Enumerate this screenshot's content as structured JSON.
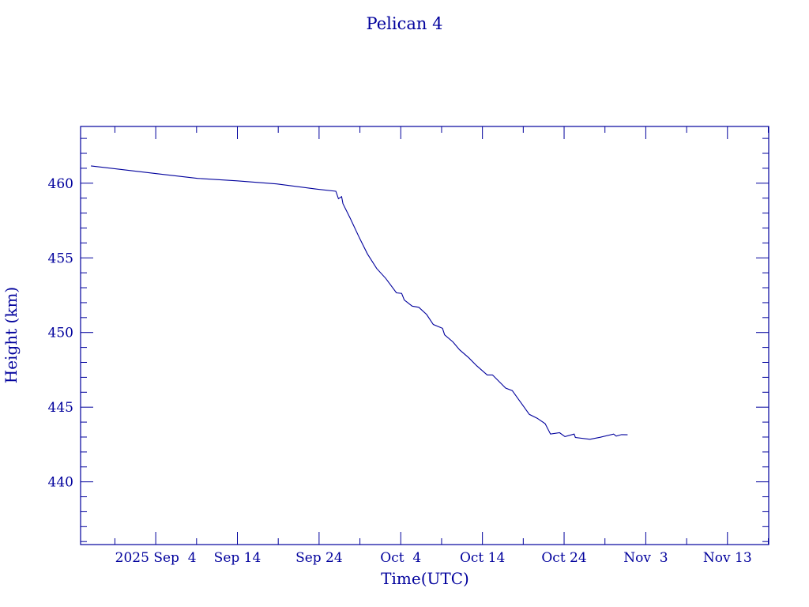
{
  "chart_data": {
    "type": "line",
    "title": "Pelican 4",
    "xlabel": "Time(UTC)",
    "ylabel": "Height (km)",
    "x_unit": "days since 2025-09-04 00:00 UTC",
    "xlim": [
      -9.2,
      75.05
    ],
    "ylim": [
      435.8,
      463.8
    ],
    "x_ticks": [
      {
        "value": 0,
        "label": "2025 Sep  4"
      },
      {
        "value": 10,
        "label": "Sep 14"
      },
      {
        "value": 20,
        "label": "Sep 24"
      },
      {
        "value": 30,
        "label": "Oct  4"
      },
      {
        "value": 40,
        "label": "Oct 14"
      },
      {
        "value": 50,
        "label": "Oct 24"
      },
      {
        "value": 60,
        "label": "Nov  3"
      },
      {
        "value": 70,
        "label": "Nov 13"
      }
    ],
    "x_minor_step": 5,
    "y_ticks": [
      {
        "value": 440,
        "label": "440"
      },
      {
        "value": 445,
        "label": "445"
      },
      {
        "value": 450,
        "label": "450"
      },
      {
        "value": 455,
        "label": "455"
      },
      {
        "value": 460,
        "label": "460"
      }
    ],
    "y_minor_step": 1,
    "grid": false,
    "color": "#00009c",
    "series": [
      {
        "name": "Pelican 4",
        "x": [
          -7.93,
          0.29,
          5.13,
          9.96,
          14.8,
          19.63,
          22.05,
          22.37,
          22.76,
          22.92,
          23.82,
          24.95,
          25.92,
          27.05,
          28.17,
          29.47,
          30.11,
          30.43,
          31.4,
          32.21,
          33.17,
          33.98,
          35.11,
          35.37,
          36.39,
          37.2,
          38.33,
          39.29,
          40.59,
          41.23,
          42.2,
          42.84,
          43.65,
          44.46,
          45.74,
          46.71,
          47.68,
          48.33,
          49.45,
          50.1,
          51.23,
          51.38,
          53.16,
          54.45,
          56.06,
          56.38,
          57.03,
          57.77
        ],
        "y": [
          461.16,
          460.63,
          460.32,
          460.16,
          459.95,
          459.61,
          459.46,
          458.96,
          459.1,
          458.63,
          457.64,
          456.32,
          455.26,
          454.29,
          453.62,
          452.66,
          452.62,
          452.18,
          451.77,
          451.69,
          451.21,
          450.54,
          450.28,
          449.84,
          449.37,
          448.84,
          448.31,
          447.78,
          447.16,
          447.16,
          446.63,
          446.28,
          446.11,
          445.49,
          444.52,
          444.26,
          443.9,
          443.2,
          443.29,
          443.03,
          443.2,
          442.97,
          442.85,
          442.99,
          443.2,
          443.06,
          443.16,
          443.15
        ]
      }
    ]
  }
}
